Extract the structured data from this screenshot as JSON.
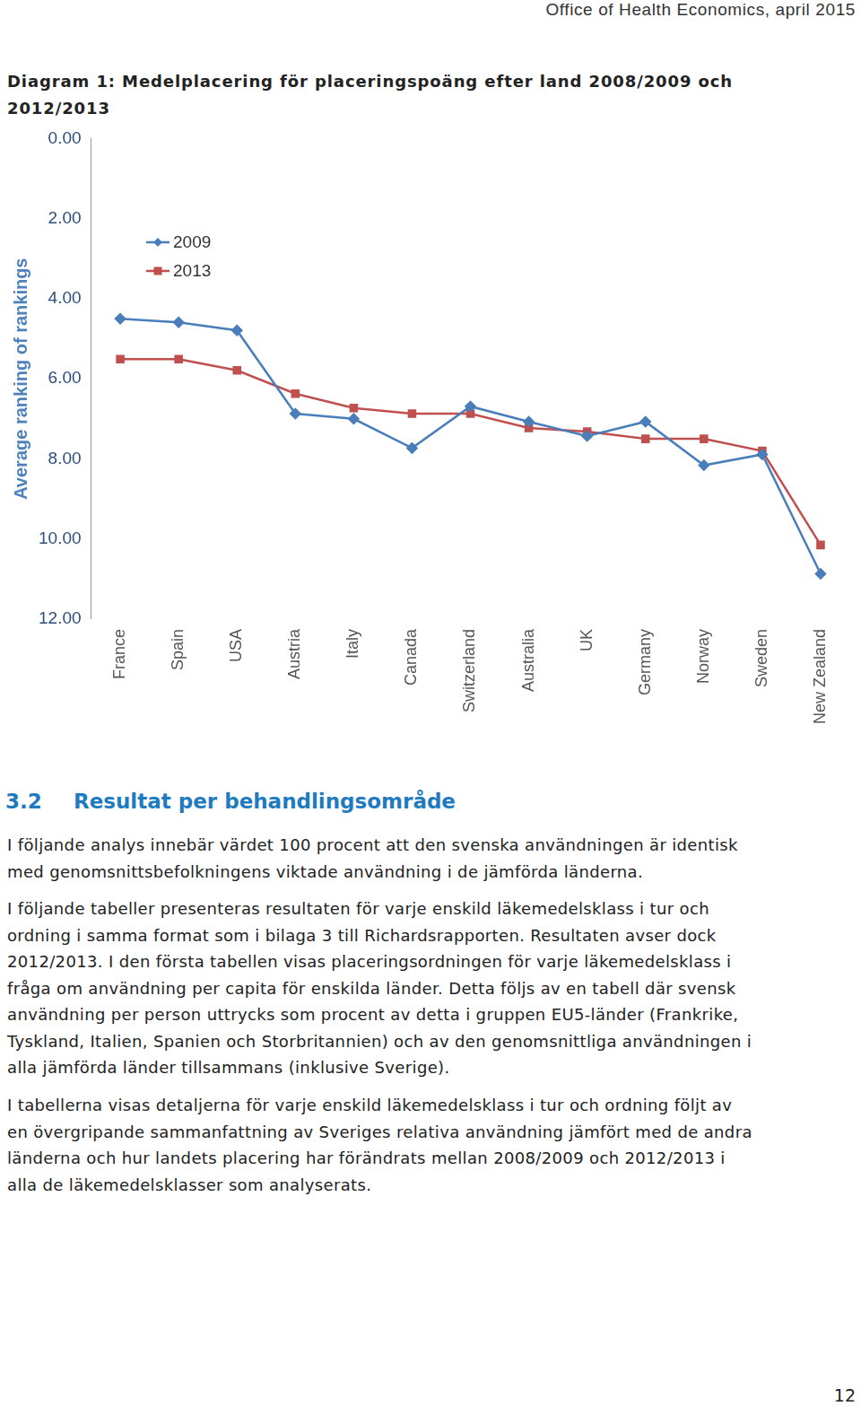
{
  "header": "Office of Health Economics, april 2015",
  "diagram_title": [
    "Diagram 1: Medelplacering för placeringspoäng efter land 2008/2009 och",
    "2012/2013"
  ],
  "chart_data": {
    "type": "line",
    "y_label": "Average ranking of rankings",
    "categories": [
      "France",
      "Spain",
      "USA",
      "Austria",
      "Italy",
      "Canada",
      "Switzerland",
      "Australia",
      "UK",
      "Germany",
      "Norway",
      "Sweden",
      "New Zealand"
    ],
    "series": [
      {
        "name": "2009",
        "color": "#4a7ebb",
        "marker": "diamond",
        "values": [
          4.5,
          4.59,
          4.79,
          6.87,
          7.0,
          7.73,
          6.69,
          7.07,
          7.43,
          7.07,
          8.16,
          7.89,
          10.87
        ]
      },
      {
        "name": "2013",
        "color": "#c0504d",
        "marker": "square",
        "values": [
          5.51,
          5.51,
          5.79,
          6.37,
          6.73,
          6.87,
          6.87,
          7.23,
          7.32,
          7.5,
          7.5,
          7.8,
          10.15
        ]
      }
    ],
    "ylim": [
      12,
      0
    ],
    "yticks": [
      {
        "value": 0,
        "label": "0.00"
      },
      {
        "value": 2,
        "label": "2.00"
      },
      {
        "value": 4,
        "label": "4.00"
      },
      {
        "value": 6,
        "label": "6.00"
      },
      {
        "value": 8,
        "label": "8.00"
      },
      {
        "value": 10,
        "label": "10.00"
      },
      {
        "value": 12,
        "label": "12.00"
      }
    ],
    "grid": false,
    "legend": "top-left"
  },
  "section": {
    "number": "3.2",
    "title": "Resultat per behandlingsområde"
  },
  "paragraphs": [
    [
      "I följande analys innebär värdet 100 procent att den svenska användningen är identisk",
      "med genomsnittsbefolkningens viktade användning i de jämförda länderna."
    ],
    [
      "I följande tabeller presenteras resultaten för varje enskild läkemedelsklass i tur och",
      "ordning i samma format som i bilaga 3 till Richardsrapporten. Resultaten avser dock",
      "2012/2013. I den första tabellen visas placeringsordningen för varje läkemedelsklass i",
      "fråga om användning per capita för enskilda länder. Detta följs av en tabell där svensk",
      "användning per person uttrycks som procent av detta i gruppen EU5-länder (Frankrike,",
      "Tyskland, Italien, Spanien och Storbritannien) och av den genomsnittliga användningen i",
      "alla jämförda länder tillsammans (inklusive Sverige)."
    ],
    [
      "I tabellerna visas detaljerna för varje enskild läkemedelsklass i tur och ordning följt av",
      "en övergripande sammanfattning av Sveriges relativa användning jämfört med de andra",
      "länderna och hur landets placering har förändrats mellan 2008/2009 och 2012/2013 i",
      "alla de läkemedelsklasser som analyserats."
    ]
  ],
  "page_number": "12"
}
